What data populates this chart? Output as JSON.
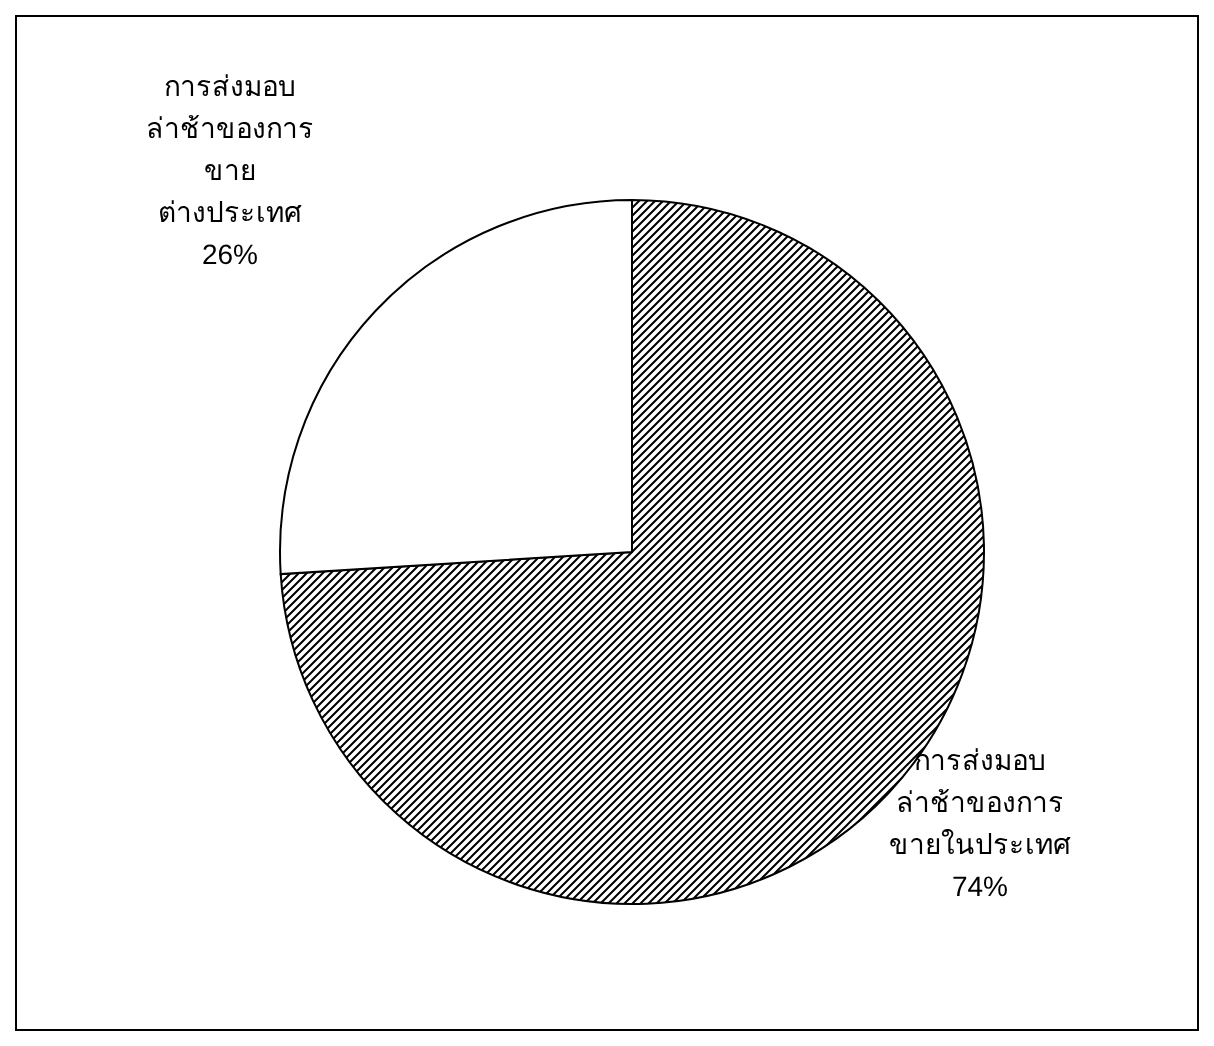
{
  "chart_data": {
    "type": "pie",
    "categories": [
      "การส่งมอบ\nล่าช้าของการ\nขายในประเทศ",
      "การส่งมอบ\nล่าช้าของการ\nขาย\nต่างประเทศ"
    ],
    "values": [
      74,
      26
    ],
    "colors": [
      "#ffffff",
      "#ffffff"
    ],
    "value_labels": [
      "74%",
      "26%"
    ]
  }
}
